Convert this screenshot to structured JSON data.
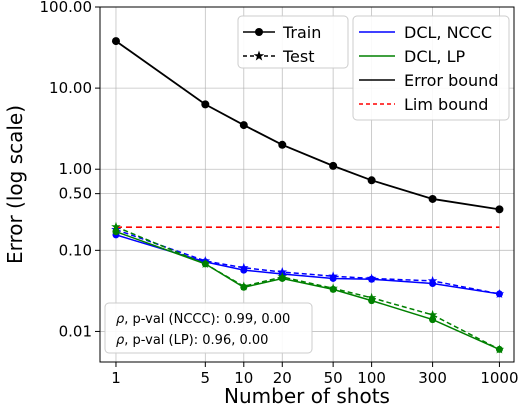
{
  "chart_data": {
    "type": "line",
    "xlabel": "Number of shots",
    "ylabel": "Error (log scale)",
    "xscale": "log",
    "yscale": "log",
    "xlim": [
      0.75,
      1300
    ],
    "ylim": [
      0.0042,
      100
    ],
    "x_ticks": [
      1,
      5,
      10,
      20,
      50,
      100,
      300,
      1000
    ],
    "x_tick_labels": [
      "1",
      "5",
      "10",
      "20",
      "50",
      "100",
      "300",
      "1000"
    ],
    "y_ticks": [
      0.01,
      0.1,
      0.5,
      1,
      10,
      100
    ],
    "y_tick_labels": [
      "0.01",
      "0.10",
      "0.50",
      "1.00",
      "10.00",
      "100.00"
    ],
    "grid": true,
    "x": [
      1,
      5,
      10,
      20,
      50,
      100,
      300,
      1000
    ],
    "series": [
      {
        "name": "DCL, NCCC",
        "role": "train",
        "color": "#0000ff",
        "values": [
          0.155,
          0.072,
          0.057,
          0.051,
          0.045,
          0.044,
          0.039,
          0.029
        ]
      },
      {
        "name": "DCL, NCCC",
        "role": "test",
        "color": "#0000ff",
        "values": [
          0.18,
          0.074,
          0.061,
          0.054,
          0.048,
          0.045,
          0.042,
          0.029
        ]
      },
      {
        "name": "DCL, LP",
        "role": "train",
        "color": "#008000",
        "values": [
          0.17,
          0.068,
          0.035,
          0.045,
          0.033,
          0.024,
          0.014,
          0.006
        ]
      },
      {
        "name": "DCL, LP",
        "role": "test",
        "color": "#008000",
        "values": [
          0.195,
          0.068,
          0.036,
          0.047,
          0.034,
          0.026,
          0.016,
          0.006
        ]
      },
      {
        "name": "Error bound",
        "role": "bound",
        "color": "#000000",
        "values": [
          38,
          6.3,
          3.5,
          2.0,
          1.1,
          0.73,
          0.43,
          0.32
        ]
      },
      {
        "name": "Lim bound",
        "role": "limit",
        "color": "#ff0000",
        "values": [
          0.193,
          0.193,
          0.193,
          0.193,
          0.193,
          0.193,
          0.193,
          0.193
        ]
      }
    ],
    "legend_markers": [
      {
        "label": "Train",
        "marker": "circle",
        "line": "solid"
      },
      {
        "label": "Test",
        "marker": "star",
        "line": "dashed"
      }
    ],
    "legend_lines": [
      {
        "label": "DCL, NCCC",
        "color": "#0000ff",
        "line": "solid"
      },
      {
        "label": "DCL, LP",
        "color": "#008000",
        "line": "solid"
      },
      {
        "label": "Error bound",
        "color": "#000000",
        "line": "solid"
      },
      {
        "label": "Lim bound",
        "color": "#ff0000",
        "line": "dashed"
      }
    ],
    "legend_placement": "top-right",
    "annotation_placement": "bottom-left",
    "annotations": [
      {
        "symbol": "ρ",
        "text": ", p-val (NCCC):  0.99, 0.00"
      },
      {
        "symbol": "ρ",
        "text": ", p-val (LP):  0.96, 0.00"
      }
    ]
  }
}
